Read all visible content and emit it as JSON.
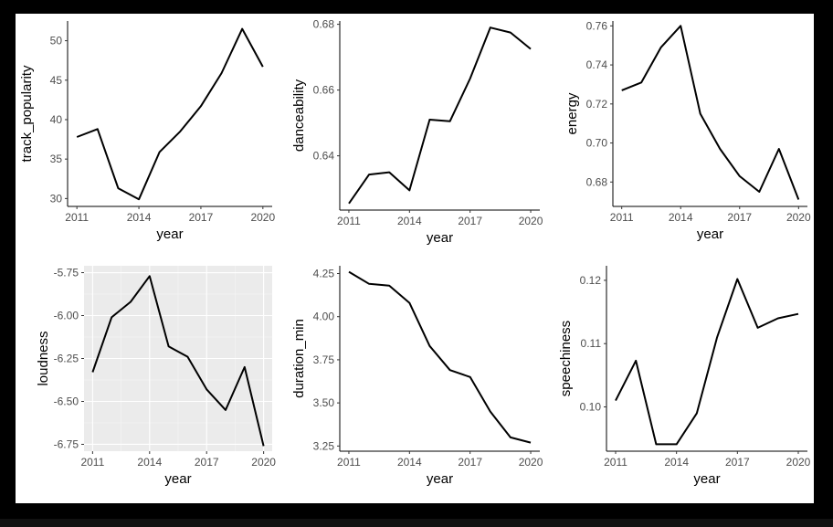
{
  "chart_data": [
    {
      "type": "line",
      "ylabel": "track_popularity",
      "xlabel": "year",
      "x": [
        2011,
        2012,
        2013,
        2014,
        2015,
        2016,
        2017,
        2018,
        2019,
        2020
      ],
      "values": [
        37.8,
        38.8,
        31.3,
        29.9,
        35.9,
        38.5,
        41.7,
        45.9,
        51.5,
        46.7
      ],
      "xticks": [
        2011,
        2014,
        2017,
        2020
      ],
      "yticks": [
        30,
        35,
        40,
        45,
        50
      ],
      "ytick_labels": [
        "30",
        "35",
        "40",
        "45",
        "50"
      ],
      "ylim": [
        29.0,
        52.5
      ],
      "grid": false
    },
    {
      "type": "line",
      "ylabel": "danceability",
      "xlabel": "year",
      "x": [
        2011,
        2012,
        2013,
        2014,
        2015,
        2016,
        2017,
        2018,
        2019,
        2020
      ],
      "values": [
        0.6255,
        0.6343,
        0.635,
        0.6295,
        0.651,
        0.6505,
        0.6635,
        0.679,
        0.6775,
        0.6725
      ],
      "xticks": [
        2011,
        2014,
        2017,
        2020
      ],
      "yticks": [
        0.64,
        0.66,
        0.68
      ],
      "ytick_labels": [
        "0.64",
        "0.66",
        "0.68"
      ],
      "ylim": [
        0.6235,
        0.681
      ],
      "grid": false
    },
    {
      "type": "line",
      "ylabel": "energy",
      "xlabel": "year",
      "x": [
        2011,
        2012,
        2013,
        2014,
        2015,
        2016,
        2017,
        2018,
        2019,
        2020
      ],
      "values": [
        0.727,
        0.731,
        0.749,
        0.76,
        0.715,
        0.697,
        0.683,
        0.675,
        0.697,
        0.671
      ],
      "xticks": [
        2011,
        2014,
        2017,
        2020
      ],
      "yticks": [
        0.68,
        0.7,
        0.72,
        0.74,
        0.76
      ],
      "ytick_labels": [
        "0.68",
        "0.70",
        "0.72",
        "0.74",
        "0.76"
      ],
      "ylim": [
        0.6675,
        0.7625
      ],
      "grid": false
    },
    {
      "type": "line",
      "ylabel": "loudness",
      "xlabel": "year",
      "x": [
        2011,
        2012,
        2013,
        2014,
        2015,
        2016,
        2017,
        2018,
        2019,
        2020
      ],
      "values": [
        -6.33,
        -6.01,
        -5.92,
        -5.77,
        -6.18,
        -6.24,
        -6.43,
        -6.55,
        -6.3,
        -6.76
      ],
      "xticks": [
        2011,
        2014,
        2017,
        2020
      ],
      "yticks": [
        -6.75,
        -6.5,
        -6.25,
        -6.0,
        -5.75
      ],
      "ytick_labels": [
        "-6.75",
        "-6.50",
        "-6.25",
        "-6.00",
        "-5.75"
      ],
      "ylim": [
        -6.79,
        -5.71
      ],
      "grid": true
    },
    {
      "type": "line",
      "ylabel": "duration_min",
      "xlabel": "year",
      "x": [
        2011,
        2012,
        2013,
        2014,
        2015,
        2016,
        2017,
        2018,
        2019,
        2020
      ],
      "values": [
        4.26,
        4.19,
        4.18,
        4.08,
        3.83,
        3.69,
        3.65,
        3.45,
        3.3,
        3.27
      ],
      "xticks": [
        2011,
        2014,
        2017,
        2020
      ],
      "yticks": [
        3.25,
        3.5,
        3.75,
        4.0,
        4.25
      ],
      "ytick_labels": [
        "3.25",
        "3.50",
        "3.75",
        "4.00",
        "4.25"
      ],
      "ylim": [
        3.22,
        4.295
      ],
      "grid": false
    },
    {
      "type": "line",
      "ylabel": "speechiness",
      "xlabel": "year",
      "x": [
        2011,
        2012,
        2013,
        2014,
        2015,
        2016,
        2017,
        2018,
        2019,
        2020
      ],
      "values": [
        0.101,
        0.1073,
        0.0941,
        0.0941,
        0.099,
        0.111,
        0.1202,
        0.1125,
        0.114,
        0.1147
      ],
      "xticks": [
        2011,
        2014,
        2017,
        2020
      ],
      "yticks": [
        0.1,
        0.11,
        0.12
      ],
      "ytick_labels": [
        "0.10",
        "0.11",
        "0.12"
      ],
      "ylim": [
        0.093,
        0.1223
      ],
      "grid": false
    }
  ]
}
